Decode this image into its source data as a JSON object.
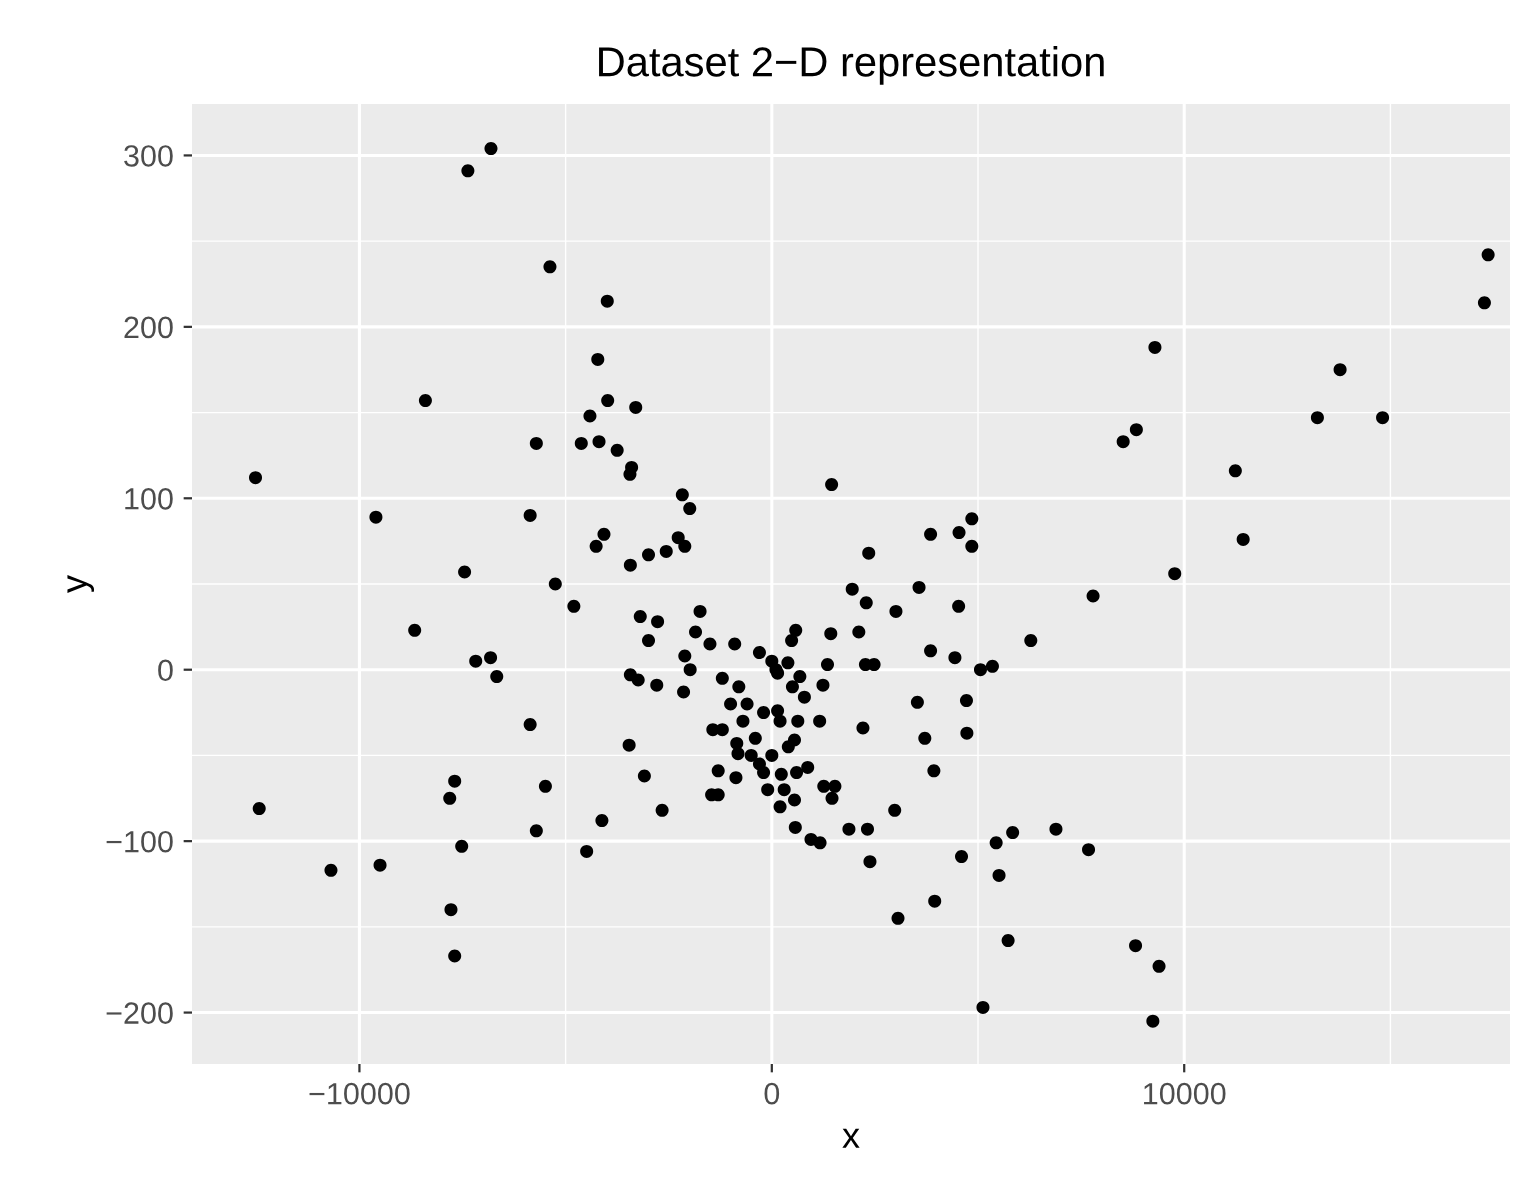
{
  "chart_data": {
    "type": "scatter",
    "title": "Dataset 2−D representation",
    "xlabel": "x",
    "ylabel": "y",
    "xlim": [
      -14060,
      17900
    ],
    "ylim": [
      -230,
      330
    ],
    "xticks": [
      {
        "value": -10000,
        "label": "−10000"
      },
      0,
      10000
    ],
    "yticks": [
      {
        "value": -200,
        "label": "−200"
      },
      {
        "value": -100,
        "label": "−100"
      },
      0,
      100,
      200,
      300
    ],
    "grid": true,
    "marker": "circle",
    "series": [
      {
        "color": "#000000",
        "x": [
          -12520,
          -12430,
          -10690,
          -9600,
          -9500,
          -8660,
          -8400,
          -7370,
          -6810,
          -7450,
          -7180,
          -6820,
          -6670,
          -7690,
          -7810,
          -7520,
          -7780,
          -7690,
          -5860,
          -5860,
          -5710,
          -5380,
          -5490,
          -5710,
          -5250,
          -4800,
          -4120,
          -4490,
          -4260,
          -4070,
          -3990,
          -4220,
          -3980,
          -4410,
          -4620,
          -4190,
          -3750,
          -3300,
          -3400,
          -3440,
          -3430,
          -2990,
          -2560,
          -2270,
          -2110,
          -2170,
          -1990,
          -3460,
          -3090,
          -2660,
          -3430,
          -3240,
          -2790,
          -3190,
          -2770,
          -2990,
          -2140,
          -2110,
          -1980,
          -1850,
          -1740,
          -1300,
          -1460,
          -1430,
          -1300,
          -870,
          -850,
          -820,
          -600,
          -400,
          -200,
          0,
          200,
          -800,
          -300,
          100,
          300,
          -100,
          -500,
          0,
          -1000,
          -200,
          400,
          600,
          -700,
          200,
          -900,
          500,
          -1200,
          -1500,
          -1200,
          -300,
          17370,
          17280,
          9290,
          8840,
          8520,
          13780,
          13230,
          14810,
          11240,
          11430,
          9770,
          7790,
          1450,
          2350,
          3850,
          4850,
          4540,
          4850,
          1950,
          2290,
          3010,
          3570,
          4530,
          6280,
          3850,
          4440,
          5060,
          5350,
          2270,
          2480,
          1430,
          2110,
          580,
          480,
          3530,
          4720,
          2210,
          3710,
          4730,
          3930,
          2980,
          1870,
          2320,
          2380,
          4600,
          5440,
          5840,
          5510,
          6890,
          7680,
          3950,
          3060,
          5730,
          8820,
          9390,
          9240,
          5120,
          570,
          950,
          1170,
          1260,
          1530,
          1460,
          790,
          1160,
          870,
          550,
          140,
          390,
          140,
          1240,
          1350,
          680,
          630,
          550,
          230
        ],
        "values": [
          112,
          -81,
          -117,
          89,
          -114,
          23,
          157,
          291,
          304,
          57,
          5,
          7,
          -4,
          -65,
          -75,
          -103,
          -140,
          -167,
          -32,
          90,
          132,
          235,
          -68,
          -94,
          50,
          37,
          -88,
          -106,
          72,
          79,
          215,
          181,
          157,
          148,
          132,
          133,
          128,
          153,
          118,
          114,
          61,
          67,
          69,
          77,
          72,
          102,
          94,
          -44,
          -62,
          -82,
          -3,
          -6,
          -9,
          31,
          28,
          17,
          -13,
          8,
          0,
          22,
          34,
          -73,
          -73,
          -35,
          -59,
          -63,
          -43,
          -49,
          -20,
          -40,
          -60,
          -50,
          -30,
          -10,
          10,
          0,
          -70,
          -70,
          -50,
          5,
          -20,
          -25,
          -45,
          -60,
          -30,
          -80,
          15,
          -10,
          -5,
          15,
          -35,
          -55,
          242,
          214,
          188,
          140,
          133,
          175,
          147,
          147,
          116,
          76,
          56,
          43,
          108,
          68,
          79,
          88,
          80,
          72,
          47,
          39,
          34,
          48,
          37,
          17,
          11,
          7,
          0,
          2,
          3,
          3,
          21,
          22,
          23,
          17,
          -19,
          -18,
          -34,
          -40,
          -37,
          -59,
          -82,
          -93,
          -93,
          -112,
          -109,
          -101,
          -95,
          -120,
          -93,
          -105,
          -135,
          -145,
          -158,
          -161,
          -173,
          -205,
          -197,
          -92,
          -99,
          -101,
          -68,
          -68,
          -75,
          -16,
          -30,
          -57,
          -76,
          -2,
          4,
          -24,
          -9,
          3,
          -4,
          -30,
          -41,
          -61
        ]
      }
    ]
  }
}
